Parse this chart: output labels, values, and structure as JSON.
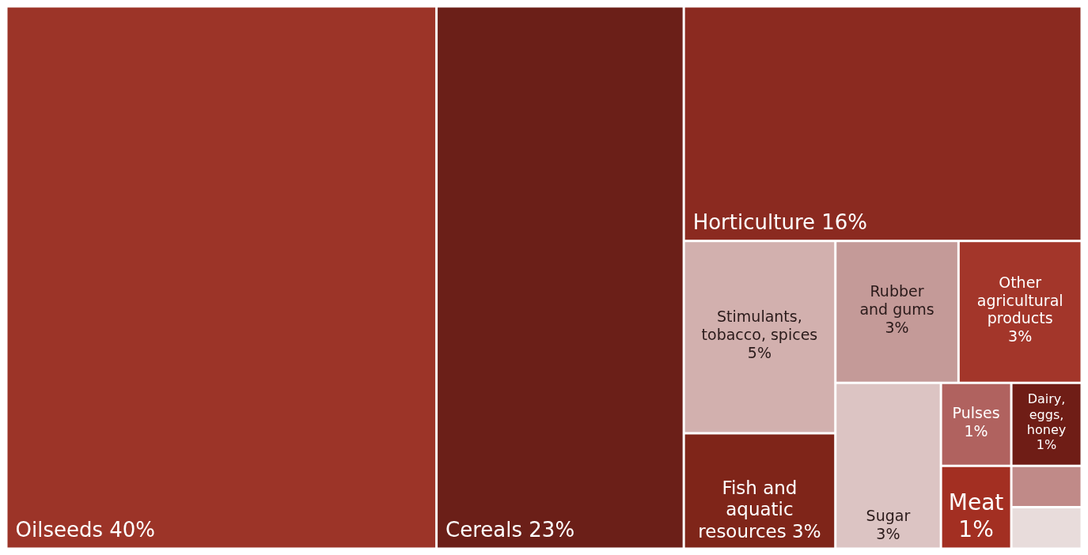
{
  "chart_data": {
    "type": "other",
    "categories": [
      "Oilseeds",
      "Cereals",
      "Horticulture",
      "Stimulants,\ntobacco, spices",
      "Fish and\naquatic\nresources",
      "Rubber\nand gums",
      "Other\nagricultural\nproducts",
      "Sugar",
      "Pulses",
      "Dairy,\neggs,\nhoney",
      "Meat",
      null,
      null
    ],
    "values": [
      40,
      23,
      16,
      5,
      3,
      3,
      3,
      3,
      1,
      1,
      1,
      null,
      null
    ],
    "value_labels": [
      "40%",
      "23%",
      "16%",
      "5%",
      "3%",
      "3%",
      "3%",
      "3%",
      "1%",
      "1%",
      "1%",
      null,
      null
    ],
    "colors": [
      "#9c3428",
      "#6b1f18",
      "#8b2a20",
      "#d2b0ae",
      "#7f2519",
      "#c49a98",
      "#a3362a",
      "#dcc4c3",
      "#b0625f",
      "#6f1d16",
      "#a32f22",
      "#c08a88",
      "#e8dcdb"
    ]
  }
}
